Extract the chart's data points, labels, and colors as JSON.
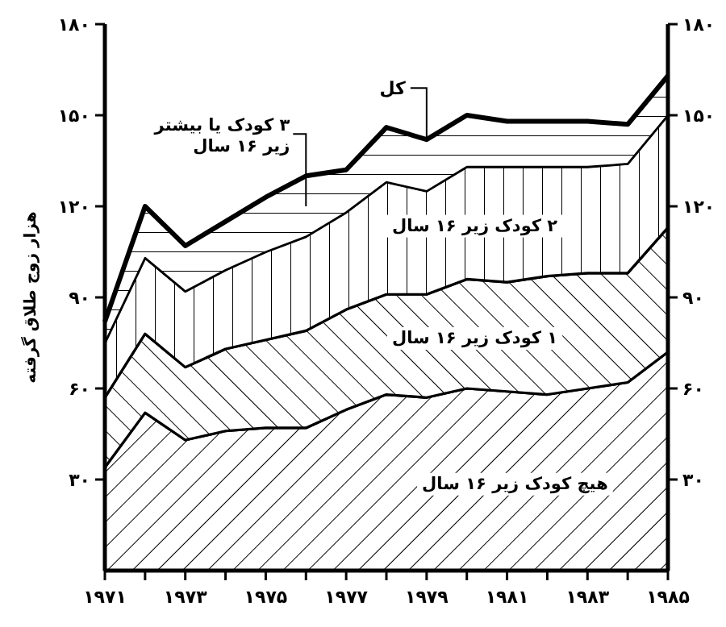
{
  "chart_data": {
    "type": "area",
    "stacked": true,
    "ylabel": "هزار زوج طلاق گرفته",
    "x": [
      1971,
      1972,
      1973,
      1974,
      1975,
      1976,
      1977,
      1978,
      1979,
      1980,
      1981,
      1982,
      1983,
      1984,
      1985
    ],
    "xlim": [
      1971,
      1985
    ],
    "xticks": [
      {
        "value": 1971,
        "label": "۱۹۷۱"
      },
      {
        "value": 1972,
        "label": null
      },
      {
        "value": 1973,
        "label": "۱۹۷۳"
      },
      {
        "value": 1974,
        "label": null
      },
      {
        "value": 1975,
        "label": "۱۹۷۵"
      },
      {
        "value": 1976,
        "label": null
      },
      {
        "value": 1977,
        "label": "۱۹۷۷"
      },
      {
        "value": 1978,
        "label": null
      },
      {
        "value": 1979,
        "label": "۱۹۷۹"
      },
      {
        "value": 1980,
        "label": null
      },
      {
        "value": 1981,
        "label": "۱۹۸۱"
      },
      {
        "value": 1982,
        "label": null
      },
      {
        "value": 1983,
        "label": "۱۹۸۳"
      },
      {
        "value": 1984,
        "label": null
      },
      {
        "value": 1985,
        "label": "۱۹۸۵"
      }
    ],
    "ylim": [
      0,
      180
    ],
    "yticks": [
      {
        "value": 30,
        "label": "۳۰"
      },
      {
        "value": 60,
        "label": "۶۰"
      },
      {
        "value": 90,
        "label": "۹۰"
      },
      {
        "value": 120,
        "label": "۱۲۰"
      },
      {
        "value": 150,
        "label": "۱۵۰"
      },
      {
        "value": 180,
        "label": "۱۸۰"
      }
    ],
    "y2lim": [
      0,
      180
    ],
    "y2ticks": [
      {
        "value": 30,
        "label": "۳۰"
      },
      {
        "value": 60,
        "label": "۶۰"
      },
      {
        "value": 90,
        "label": "۹۰"
      },
      {
        "value": 120,
        "label": "۱۲۰"
      },
      {
        "value": 150,
        "label": "۱۵۰"
      },
      {
        "value": 180,
        "label": "۱۸۰"
      }
    ],
    "series": [
      {
        "name": "هیچ کودک زیر ۱۶ سال",
        "color": "#000000",
        "values": [
          34,
          52,
          43,
          46,
          47,
          47,
          53,
          58,
          57,
          60,
          59,
          58,
          60,
          62,
          72
        ]
      },
      {
        "name": "۱ کودک زیر ۱۶ سال",
        "color": "#000000",
        "values": [
          23,
          26,
          24,
          27,
          29,
          32,
          33,
          33,
          34,
          36,
          36,
          39,
          38,
          36,
          41
        ]
      },
      {
        "name": "۲ کودک زیر ۱۶ سال",
        "color": "#000000",
        "values": [
          18,
          25,
          25,
          26,
          29,
          31,
          32,
          37,
          34,
          37,
          38,
          36,
          35,
          36,
          37
        ]
      },
      {
        "name": "۳ کودک یا بیشتر زیر ۱۶ سال",
        "color": "#000000",
        "values": [
          7,
          17,
          15,
          16,
          18,
          20,
          14,
          18,
          17,
          17,
          15,
          15,
          15,
          13,
          13
        ]
      }
    ],
    "annotations": [
      {
        "text": "کل",
        "x": 1979,
        "y": 142
      }
    ],
    "grid": false,
    "legend": false
  }
}
